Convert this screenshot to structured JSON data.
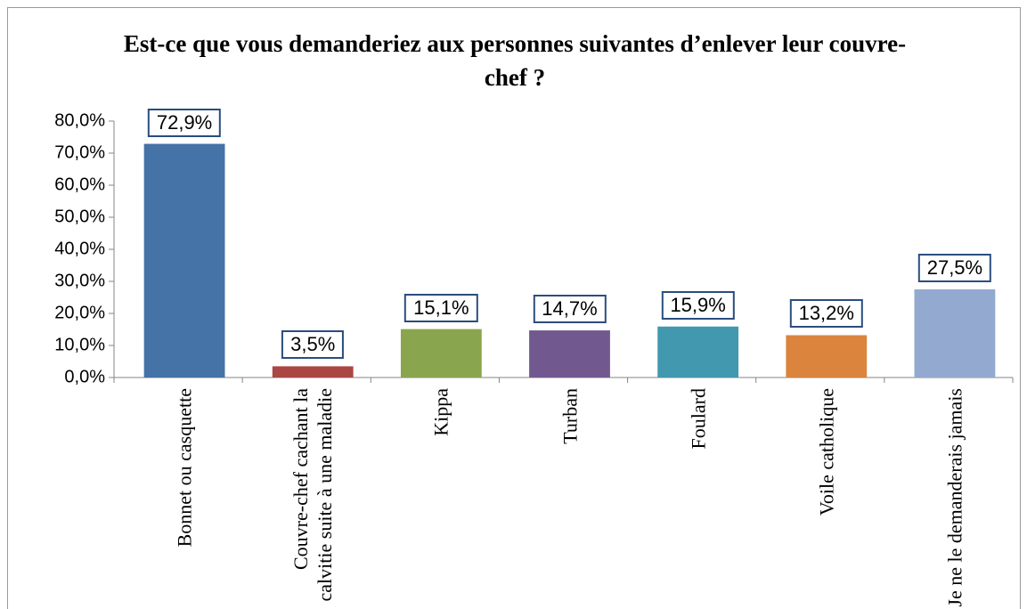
{
  "chart_data": {
    "type": "bar",
    "title": "Est-ce que vous demanderiez aux personnes suivantes d’enlever leur couvre-chef ?",
    "categories": [
      "Bonnet ou casquette",
      "Couvre-chef cachant la calvitie suite à une maladie",
      "Kippa",
      "Turban",
      "Foulard",
      "Voile catholique",
      "Je ne le demanderais jamais"
    ],
    "values": [
      72.9,
      3.5,
      15.1,
      14.7,
      15.9,
      13.2,
      27.5
    ],
    "value_labels": [
      "72,9%",
      "3,5%",
      "15,1%",
      "14,7%",
      "15,9%",
      "13,2%",
      "27,5%"
    ],
    "colors": [
      "#4572a7",
      "#aa4643",
      "#89a54e",
      "#71588f",
      "#4198af",
      "#db843d",
      "#93a9cf"
    ],
    "ylim": [
      0,
      80
    ],
    "yticks": [
      {
        "value": 0,
        "label": "0,0%"
      },
      {
        "value": 10,
        "label": "10,0%"
      },
      {
        "value": 20,
        "label": "20,0%"
      },
      {
        "value": 30,
        "label": "30,0%"
      },
      {
        "value": 40,
        "label": "40,0%"
      },
      {
        "value": 50,
        "label": "50,0%"
      },
      {
        "value": 60,
        "label": "60,0%"
      },
      {
        "value": 70,
        "label": "70,0%"
      },
      {
        "value": 80,
        "label": "80,0%"
      }
    ],
    "grid": false
  }
}
